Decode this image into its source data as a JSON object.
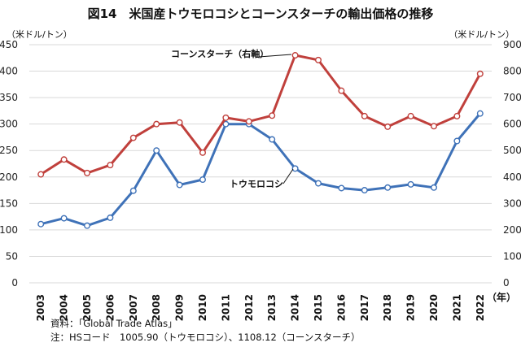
{
  "chart_data": {
    "type": "line",
    "title": "図14　米国産トウモロコシとコーンスターチの輸出価格の推移",
    "left_axis_label": "（米ドル/トン）",
    "right_axis_label": "（米ドル/トン）",
    "x_unit_label": "（年）",
    "categories": [
      "2003",
      "2004",
      "2005",
      "2006",
      "2007",
      "2008",
      "2009",
      "2010",
      "2011",
      "2012",
      "2013",
      "2014",
      "2015",
      "2016",
      "2017",
      "2018",
      "2019",
      "2020",
      "2021",
      "2022"
    ],
    "y_left": {
      "min": 0,
      "max": 450,
      "ticks": [
        0,
        50,
        100,
        150,
        200,
        250,
        300,
        350,
        400,
        450
      ]
    },
    "y_right": {
      "min": 0,
      "max": 900,
      "ticks": [
        0,
        100,
        200,
        300,
        400,
        500,
        600,
        700,
        800,
        900
      ]
    },
    "series": [
      {
        "name": "トウモロコシ",
        "axis": "left",
        "color": "#3f72b8",
        "values": [
          111,
          122,
          108,
          123,
          174,
          250,
          185,
          195,
          300,
          300,
          271,
          216,
          188,
          179,
          175,
          180,
          186,
          180,
          268,
          320
        ]
      },
      {
        "name": "コーンスターチ（右軸）",
        "axis": "right",
        "color": "#c0403c",
        "values": [
          410,
          466,
          415,
          445,
          548,
          600,
          606,
          492,
          624,
          610,
          632,
          860,
          842,
          726,
          630,
          590,
          630,
          592,
          630,
          790
        ]
      }
    ],
    "annotations": {
      "corn_label": "トウモロコシ",
      "starch_label": "コーンスターチ（右軸）"
    },
    "source": "資料：「Global Trade Atlas」",
    "note": "注：HSコード　1005.90（トウモロコシ）、1108.12（コーンスターチ）"
  }
}
